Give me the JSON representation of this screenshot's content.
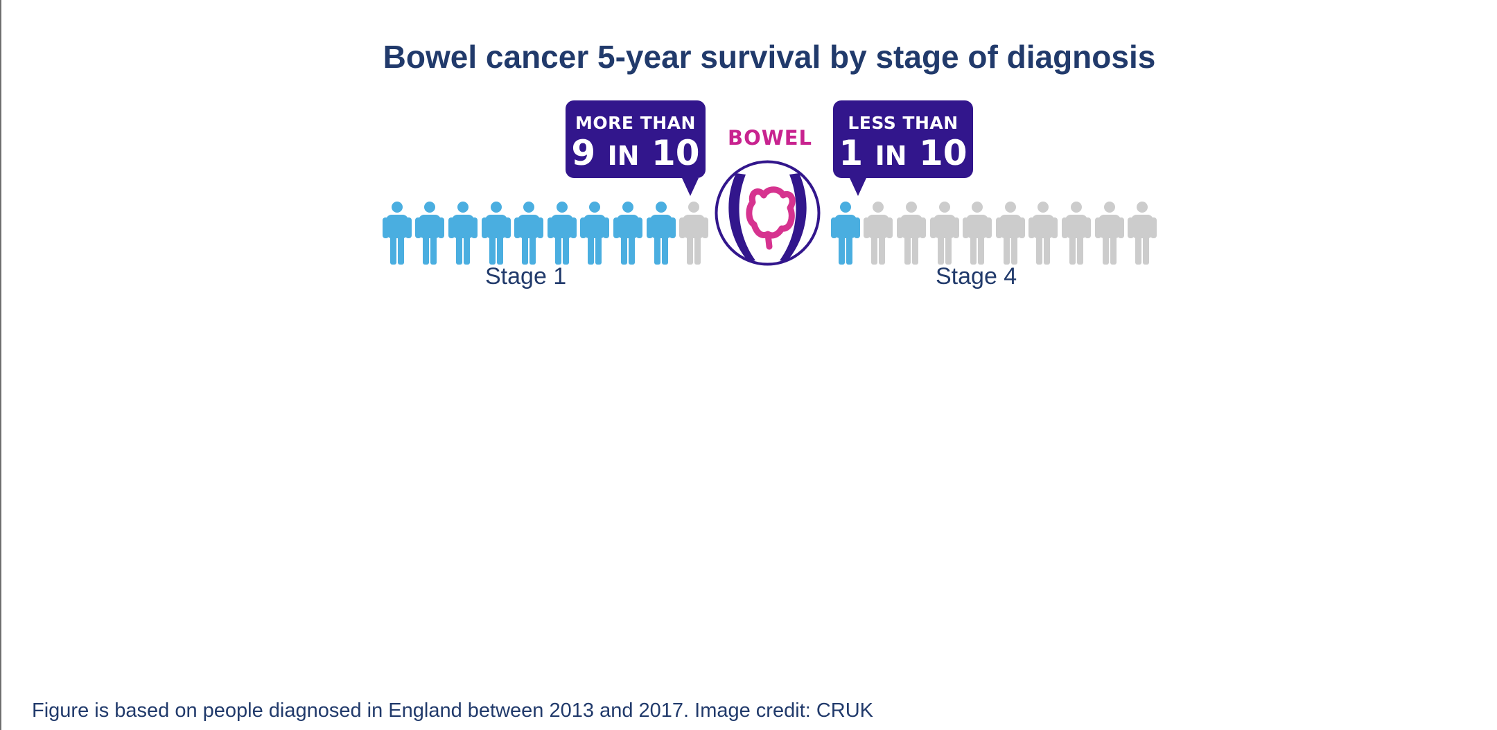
{
  "title": "Bowel cancer 5-year survival by stage of diagnosis",
  "callouts": {
    "stage1": {
      "top": "MORE THAN",
      "num1": "9",
      "word": "IN",
      "num2": "10"
    },
    "stage4": {
      "top": "LESS THAN",
      "num1": "1",
      "word": "IN",
      "num2": "10"
    }
  },
  "organ_label": "BOWEL",
  "stage_labels": {
    "left": "Stage 1",
    "right": "Stage 4"
  },
  "people": {
    "left_total": 10,
    "left_highlighted": 9,
    "right_total": 10,
    "right_highlighted": 1
  },
  "colors": {
    "highlight": "#4aaee0",
    "muted": "#cccccc",
    "callout_bg": "#32168c",
    "organ_text": "#c8238f",
    "title": "#213a6b"
  },
  "footnote": "Figure is based on people diagnosed in England between 2013 and 2017. Image credit: CRUK"
}
